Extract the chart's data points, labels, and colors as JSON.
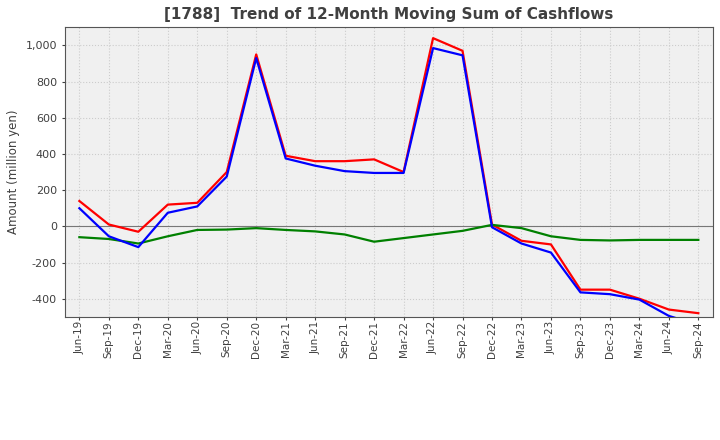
{
  "title": "[1788]  Trend of 12-Month Moving Sum of Cashflows",
  "ylabel": "Amount (million yen)",
  "background_color": "#ffffff",
  "plot_bg_color": "#f0f0f0",
  "grid_color": "#cccccc",
  "ylim": [
    -500,
    1100
  ],
  "yticks": [
    -400,
    -200,
    0,
    200,
    400,
    600,
    800,
    1000
  ],
  "x_labels": [
    "Jun-19",
    "Sep-19",
    "Dec-19",
    "Mar-20",
    "Jun-20",
    "Sep-20",
    "Dec-20",
    "Mar-21",
    "Jun-21",
    "Sep-21",
    "Dec-21",
    "Mar-22",
    "Jun-22",
    "Sep-22",
    "Dec-22",
    "Mar-23",
    "Jun-23",
    "Sep-23",
    "Dec-23",
    "Mar-24",
    "Jun-24",
    "Sep-24"
  ],
  "operating_cashflow": [
    140,
    10,
    -30,
    120,
    130,
    300,
    950,
    390,
    360,
    360,
    370,
    300,
    1040,
    970,
    10,
    -80,
    -100,
    -350,
    -350,
    -400,
    -460,
    -480
  ],
  "investing_cashflow": [
    -60,
    -70,
    -95,
    -55,
    -20,
    -18,
    -10,
    -20,
    -28,
    -45,
    -85,
    -65,
    -45,
    -25,
    8,
    -10,
    -55,
    -75,
    -78,
    -75,
    -75,
    -75
  ],
  "free_cashflow": [
    100,
    -55,
    -115,
    75,
    110,
    275,
    930,
    375,
    335,
    305,
    295,
    295,
    985,
    945,
    -5,
    -95,
    -145,
    -365,
    -375,
    -405,
    -495,
    -545
  ],
  "op_color": "#ff0000",
  "inv_color": "#008000",
  "free_color": "#0000ff",
  "line_width": 1.6,
  "title_color": "#404040",
  "tick_color": "#404040"
}
